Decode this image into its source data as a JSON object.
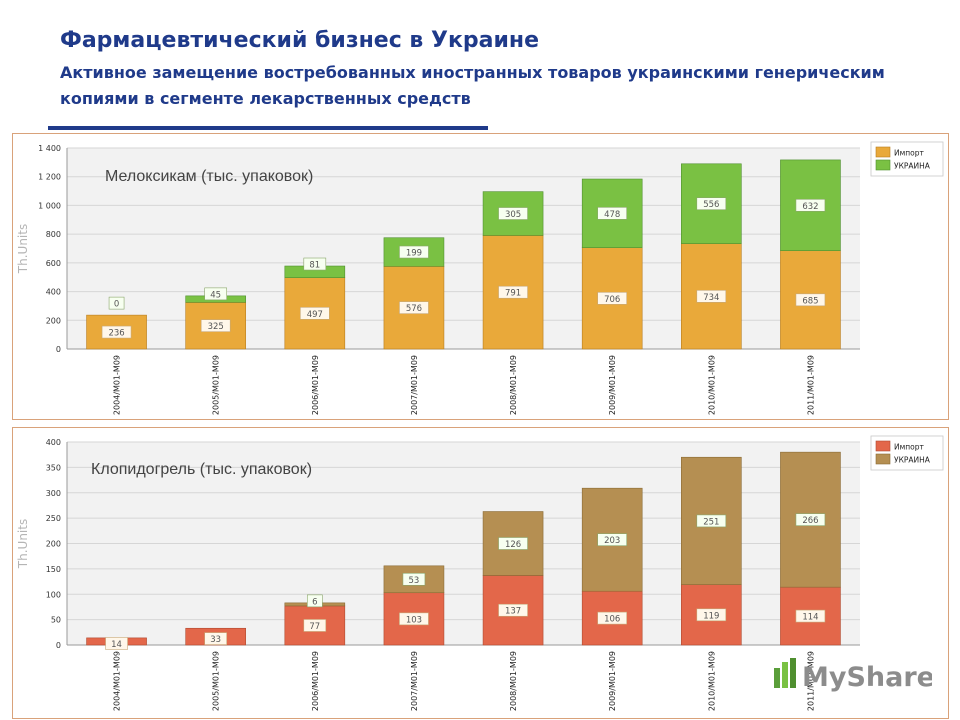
{
  "header": {
    "title": "Фармацевтический бизнес в Украине",
    "subtitle": "Активное замещение востребованных иностранных товаров украинскими генерическим копиями в сегменте лекарственных средств"
  },
  "colors": {
    "c1_import": "#e9a93a",
    "c1_ukraine": "#7ac143",
    "c2_import": "#e3674a",
    "c2_ukraine": "#b58f52",
    "header_blue": "#1f3a8a"
  },
  "watermark": {
    "text": "MyShared"
  },
  "chart_data": [
    {
      "type": "bar",
      "stacked": true,
      "title": "Мелоксикам (тыс. упаковок)",
      "ylabel": "Th.Units",
      "ylim": [
        0,
        1400
      ],
      "yticks": [
        0,
        200,
        400,
        600,
        800,
        1000,
        1200,
        1400
      ],
      "ytick_labels": [
        "0",
        "200",
        "400",
        "600",
        "800",
        "1 000",
        "1 200",
        "1 400"
      ],
      "categories": [
        "2004/M01-M09",
        "2005/M01-M09",
        "2006/M01-M09",
        "2007/M01-M09",
        "2008/M01-M09",
        "2009/M01-M09",
        "2010/M01-M09",
        "2011/M01-M09"
      ],
      "series": [
        {
          "name": "Импорт",
          "values": [
            236,
            325,
            497,
            576,
            791,
            706,
            734,
            685
          ]
        },
        {
          "name": "УКРАИНА",
          "values": [
            0,
            45,
            81,
            199,
            305,
            478,
            556,
            632
          ]
        }
      ],
      "grid": true,
      "legend": "top-right"
    },
    {
      "type": "bar",
      "stacked": true,
      "title": "Клопидогрель (тыс. упаковок)",
      "ylabel": "Th.Units",
      "ylim": [
        0,
        400
      ],
      "yticks": [
        0,
        50,
        100,
        150,
        200,
        250,
        300,
        350,
        400
      ],
      "ytick_labels": [
        "0",
        "50",
        "100",
        "150",
        "200",
        "250",
        "300",
        "350",
        "400"
      ],
      "categories": [
        "2004/M01-M09",
        "2005/M01-M09",
        "2006/M01-M09",
        "2007/M01-M09",
        "2008/M01-M09",
        "2009/M01-M09",
        "2010/M01-M09",
        "2011/M01-M09"
      ],
      "series": [
        {
          "name": "Импорт",
          "values": [
            14,
            33,
            77,
            103,
            137,
            106,
            119,
            114
          ]
        },
        {
          "name": "УКРАИНА",
          "values": [
            null,
            null,
            6,
            53,
            126,
            203,
            251,
            266
          ]
        }
      ],
      "grid": true,
      "legend": "top-right"
    }
  ]
}
